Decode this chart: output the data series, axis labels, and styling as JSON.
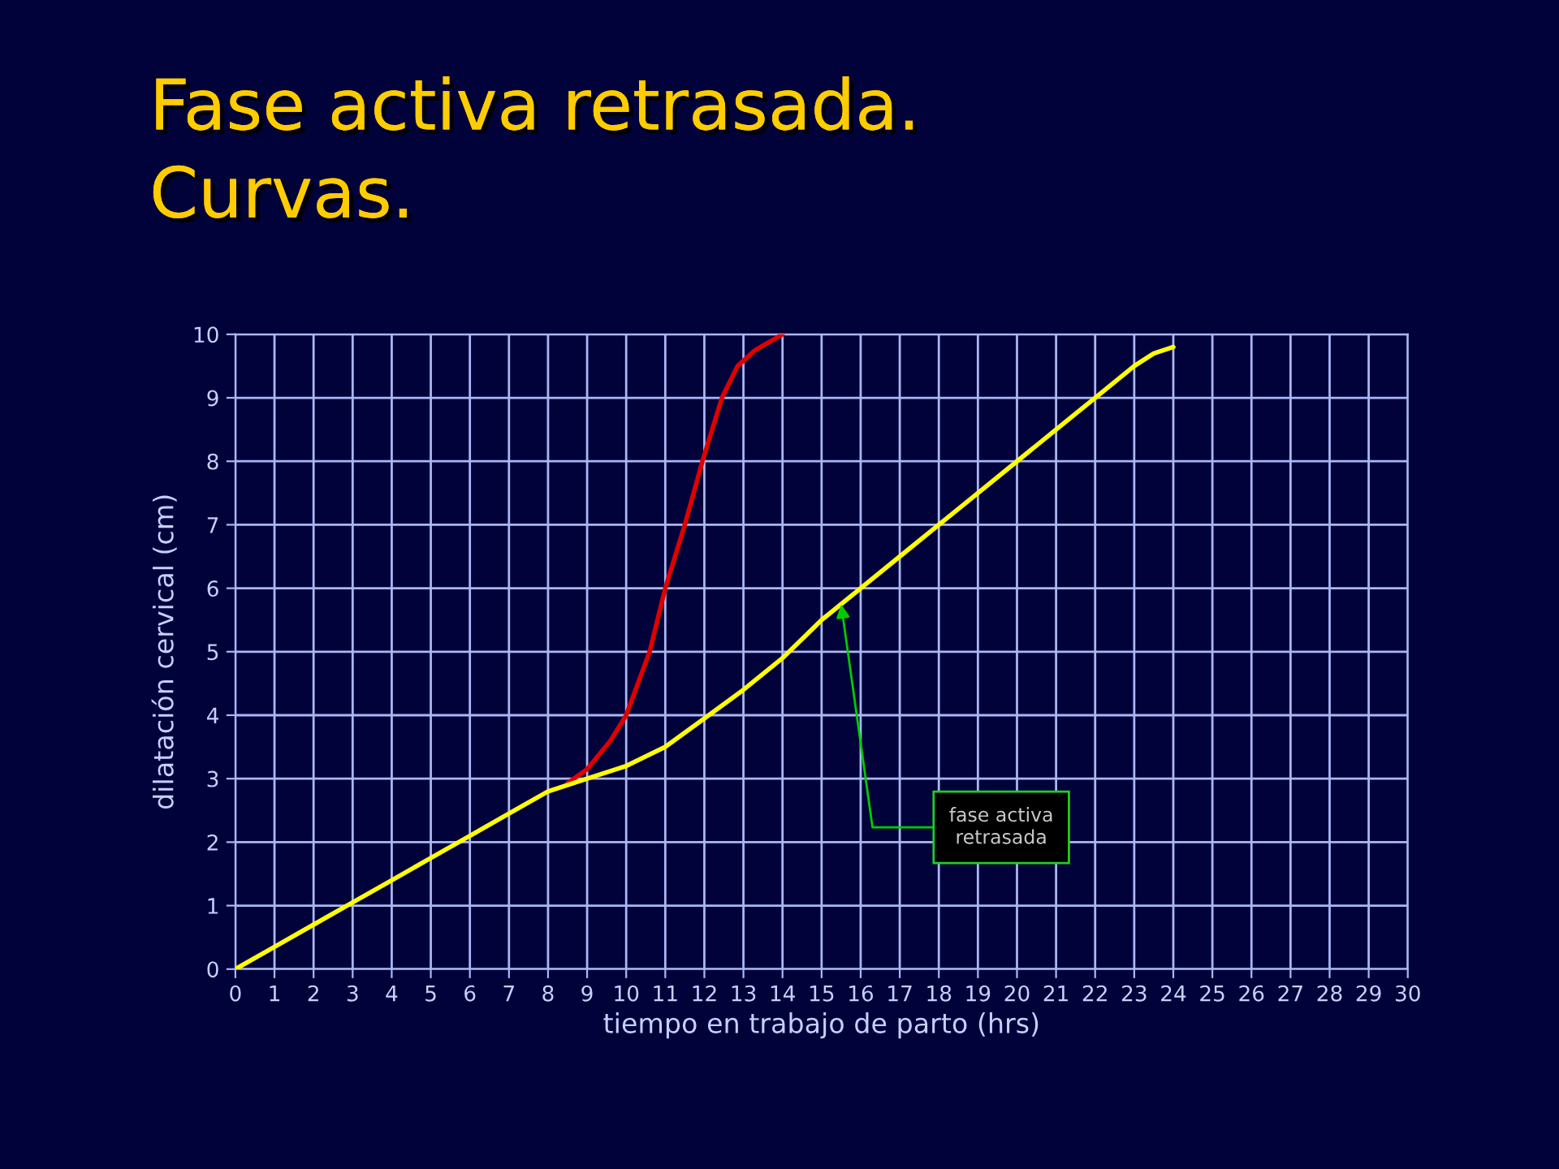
{
  "chart_data": {
    "type": "line",
    "title": "Fase activa retrasada.\nCurvas.",
    "xlabel": "tiempo en trabajo de parto (hrs)",
    "ylabel": "dilatación cervical (cm)",
    "series": [
      {
        "color": "#e00000",
        "x": [
          8.5,
          9,
          9.6,
          10,
          10.6,
          11,
          11.5,
          11.95,
          12.45,
          12.85,
          13.3,
          14
        ],
        "values": [
          2.93,
          3.15,
          3.6,
          4.0,
          5.0,
          6.0,
          7.0,
          8.0,
          9.0,
          9.5,
          9.75,
          10
        ]
      },
      {
        "color": "#ffff00",
        "x": [
          0,
          1,
          2,
          3,
          4,
          5,
          6,
          7,
          8,
          9,
          10,
          11,
          12,
          13,
          14,
          14.5,
          15,
          16,
          17,
          18,
          19,
          20,
          21,
          22,
          23,
          23.5,
          24
        ],
        "values": [
          0,
          0.35,
          0.7,
          1.05,
          1.4,
          1.75,
          2.1,
          2.45,
          2.8,
          3.0,
          3.2,
          3.5,
          3.95,
          4.4,
          4.9,
          5.2,
          5.5,
          6.0,
          6.5,
          7.0,
          7.5,
          8.0,
          8.5,
          9.0,
          9.5,
          9.7,
          9.8
        ]
      }
    ],
    "xlim": [
      0,
      30
    ],
    "xticks": [
      0,
      1,
      2,
      3,
      4,
      5,
      6,
      7,
      8,
      9,
      10,
      11,
      12,
      13,
      14,
      15,
      16,
      17,
      18,
      19,
      20,
      21,
      22,
      23,
      24,
      25,
      26,
      27,
      28,
      29,
      30
    ],
    "ylim": [
      0,
      10
    ],
    "yticks": [
      0,
      1,
      2,
      3,
      4,
      5,
      6,
      7,
      8,
      9,
      10
    ],
    "grid": true,
    "annotations": [
      {
        "text": "fase activa\nretrasada",
        "x": 15.5,
        "y": 5.75
      }
    ]
  }
}
